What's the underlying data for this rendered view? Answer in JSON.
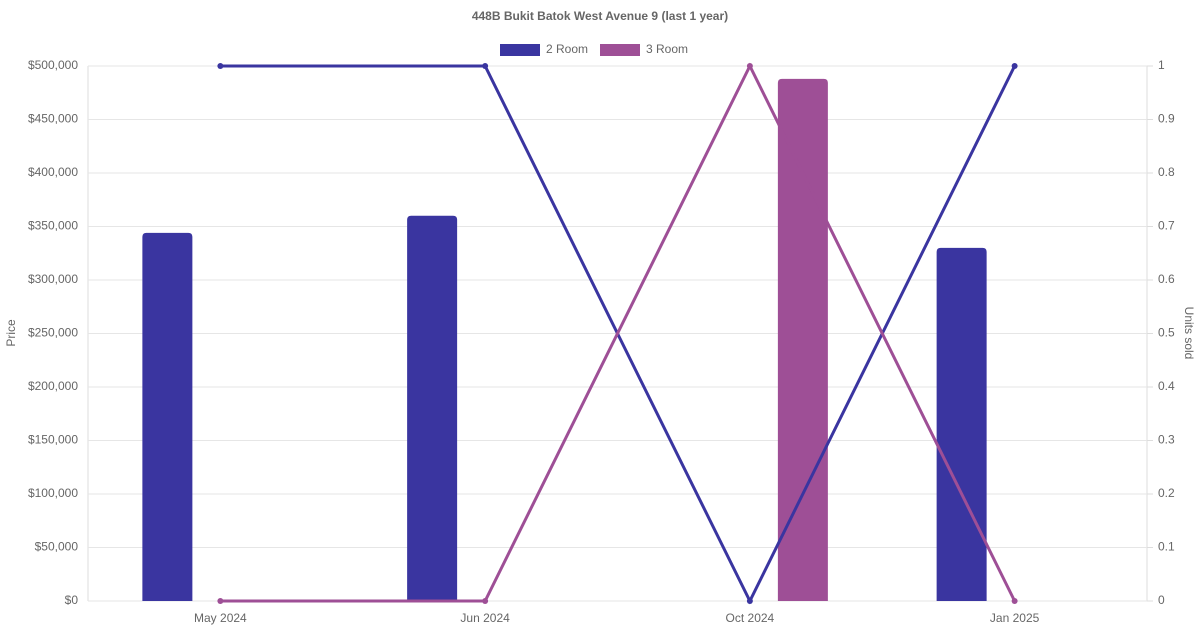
{
  "chart_data": {
    "type": "bar-line",
    "title": "448B Bukit Batok West Avenue 9 (last 1 year)",
    "ylabel": "Price",
    "y2label": "Units sold",
    "categories": [
      "May 2024",
      "Jun 2024",
      "Oct 2024",
      "Jan 2025"
    ],
    "series": [
      {
        "name": "2 Room",
        "color": "#3a35a0",
        "values": [
          344000,
          360000,
          null,
          330000
        ],
        "units_sold": [
          1,
          1,
          0,
          1
        ]
      },
      {
        "name": "3 Room",
        "color": "#9e4f96",
        "values": [
          null,
          null,
          488000,
          null
        ],
        "units_sold": [
          0,
          0,
          1,
          0
        ]
      }
    ],
    "ylim": [
      0,
      500000
    ],
    "yticks": [
      {
        "value": 0,
        "label": "$0"
      },
      {
        "value": 50000,
        "label": "$50,000"
      },
      {
        "value": 100000,
        "label": "$100,000"
      },
      {
        "value": 150000,
        "label": "$150,000"
      },
      {
        "value": 200000,
        "label": "$200,000"
      },
      {
        "value": 250000,
        "label": "$250,000"
      },
      {
        "value": 300000,
        "label": "$300,000"
      },
      {
        "value": 350000,
        "label": "$350,000"
      },
      {
        "value": 400000,
        "label": "$400,000"
      },
      {
        "value": 450000,
        "label": "$450,000"
      },
      {
        "value": 500000,
        "label": "$500,000"
      }
    ],
    "y2lim": [
      0,
      1
    ],
    "y2ticks": [
      0,
      0.1,
      0.2,
      0.3,
      0.4,
      0.5,
      0.6,
      0.7,
      0.8,
      0.9,
      1
    ],
    "grid": true,
    "legend": "top"
  }
}
